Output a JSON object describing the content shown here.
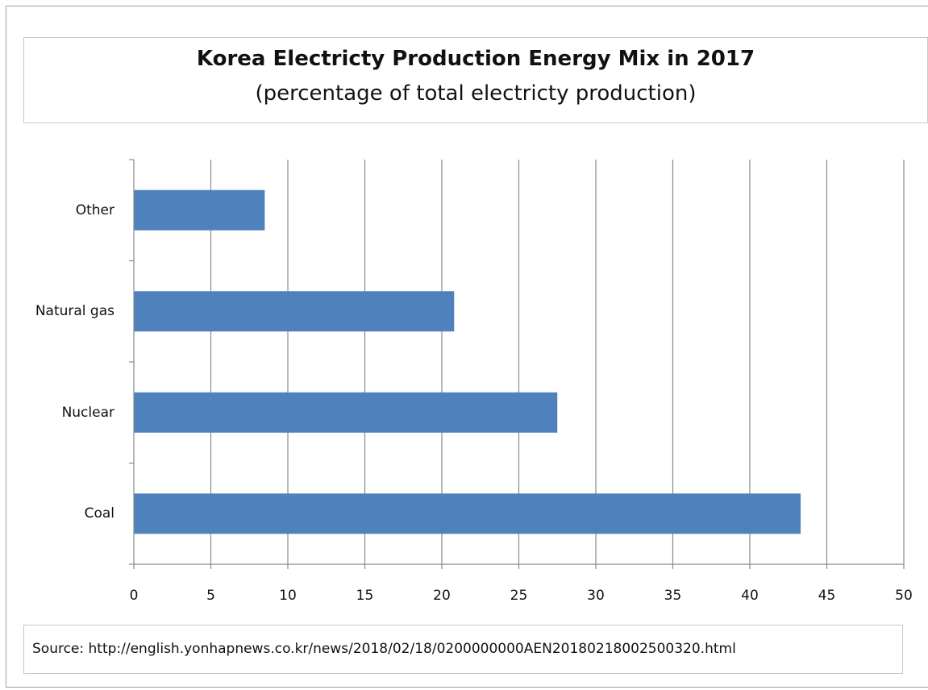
{
  "chart_data": {
    "type": "bar",
    "orientation": "horizontal",
    "title": "Korea Electricty Production Energy Mix in 2017",
    "subtitle": "(percentage of total electricty production)",
    "categories": [
      "Other",
      "Natural gas",
      "Nuclear",
      "Coal"
    ],
    "values": [
      8.5,
      20.8,
      27.5,
      43.3
    ],
    "xlim": [
      0,
      50
    ],
    "xticks": [
      "0",
      "5",
      "10",
      "15",
      "20",
      "25",
      "30",
      "35",
      "40",
      "45",
      "50"
    ],
    "grid": true,
    "bar_color": "#4f81bd"
  },
  "source_text": "Source: http://english.yonhapnews.co.kr/news/2018/02/18/0200000000AEN20180218002500320.html"
}
